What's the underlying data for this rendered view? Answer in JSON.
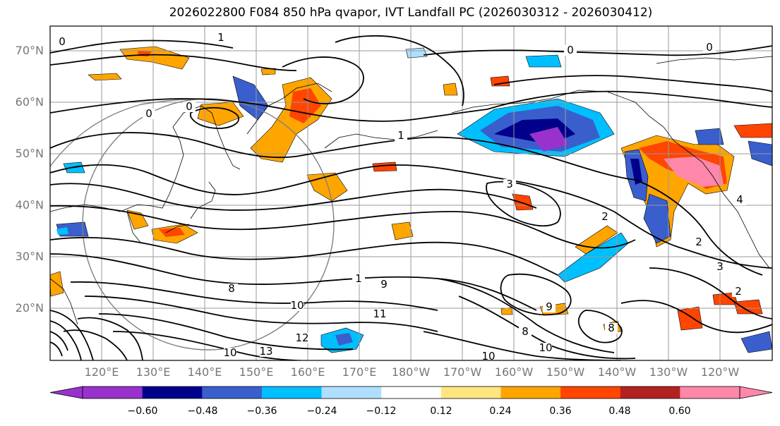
{
  "title": "2026022800 F084 850 hPa qvapor, IVT Landfall PC (2026030312 - 2026030412)",
  "lat_labels": [
    "70°N",
    "60°N",
    "50°N",
    "40°N",
    "30°N",
    "20°N"
  ],
  "lon_labels": [
    "120°E",
    "130°E",
    "140°E",
    "150°E",
    "160°E",
    "170°E",
    "180°W",
    "170°W",
    "160°W",
    "150°W",
    "140°W",
    "130°W",
    "120°W"
  ],
  "colorbar": {
    "ticks": [
      "−0.60",
      "−0.48",
      "−0.36",
      "−0.24",
      "−0.12",
      "0.12",
      "0.24",
      "0.36",
      "0.48",
      "0.60"
    ],
    "colors": [
      "#9932cc",
      "#00008b",
      "#3a5fcd",
      "#00bfff",
      "#afdfff",
      "#ffffff",
      "#ffe680",
      "#ffa500",
      "#ff4500",
      "#b22222",
      "#ff88aa"
    ]
  },
  "contour_labels": [
    "0",
    "1",
    "0",
    "0",
    "0",
    "0",
    "1",
    "3",
    "2",
    "2",
    "3",
    "4",
    "2",
    "9",
    "10",
    "11",
    "12",
    "13",
    "8",
    "10",
    "10",
    "9",
    "8",
    "10",
    "8",
    "1"
  ]
}
